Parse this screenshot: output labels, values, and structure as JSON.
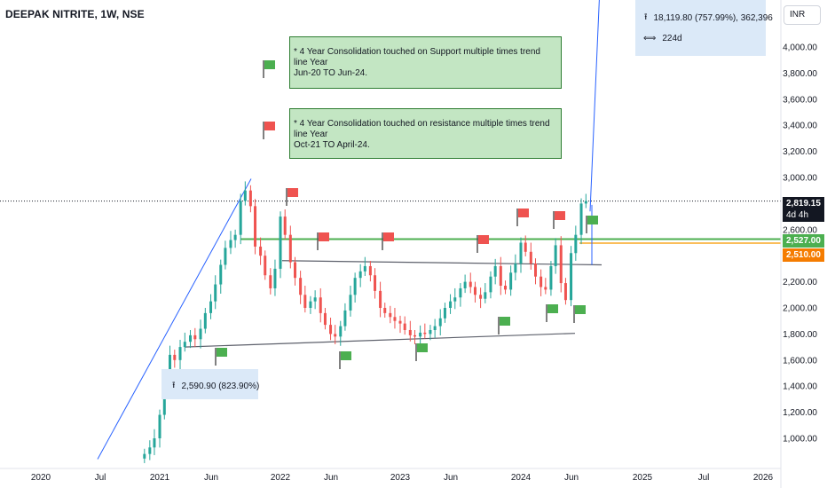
{
  "header": {
    "title": "DEEPAK NITRITE, 1W, NSE"
  },
  "currency_button": {
    "label": "INR"
  },
  "notes": [
    {
      "line1": "*  4 Year Consolidation touched on Support multiple times trend line Year",
      "line2": "Jun-20 TO Jun-24."
    },
    {
      "line1": "*  4 Year Consolidation touched on resistance multiple times trend line Year",
      "line2": "Oct-21 TO April-24."
    }
  ],
  "measure_top": {
    "price_line": "18,119.80 (757.99%), 362,396",
    "span": "224d",
    "price_icon": "price-range-icon",
    "span_icon": "date-range-icon"
  },
  "measure_left": {
    "price_line": "2,590.90 (823.90%)",
    "price_icon": "price-range-icon"
  },
  "price_tags": {
    "last": "2,819.15",
    "countdown": "4d 4h",
    "green": "2,527.00",
    "orange": "2,510.00"
  },
  "colors": {
    "up": "#26a69a",
    "down": "#ef5350",
    "trend_blue": "#2962ff",
    "support_green": "#4caf50",
    "level_orange": "#f9a825",
    "channel_grey": "#5d606b"
  },
  "chart_data": {
    "type": "candlestick",
    "title": "DEEPAK NITRITE, 1W, NSE",
    "x_ticks": [
      "2020",
      "Jul",
      "2021",
      "Jun",
      "2022",
      "Jun",
      "2023",
      "Jun",
      "2024",
      "Jun",
      "2025",
      "Jul",
      "2026"
    ],
    "y_ticks": [
      "4,000.00",
      "3,800.00",
      "3,600.00",
      "3,400.00",
      "3,200.00",
      "3,000.00",
      "2,600.00",
      "2,200.00",
      "2,000.00",
      "1,800.00",
      "1,600.00",
      "1,400.00",
      "1,200.00",
      "1,000.00"
    ],
    "ylim": [
      820,
      4220
    ],
    "closes": [
      [
        "2020-11-15",
        880
      ],
      [
        "2020-12-01",
        930
      ],
      [
        "2020-12-15",
        1000
      ],
      [
        "2021-01-01",
        1180
      ],
      [
        "2021-01-15",
        1380
      ],
      [
        "2021-02-01",
        1640
      ],
      [
        "2021-02-15",
        1600
      ],
      [
        "2021-03-01",
        1700
      ],
      [
        "2021-03-15",
        1740
      ],
      [
        "2021-04-01",
        1790
      ],
      [
        "2021-04-15",
        1760
      ],
      [
        "2021-05-01",
        1840
      ],
      [
        "2021-05-15",
        1960
      ],
      [
        "2021-06-01",
        2050
      ],
      [
        "2021-06-15",
        2180
      ],
      [
        "2021-07-01",
        2330
      ],
      [
        "2021-07-15",
        2460
      ],
      [
        "2021-08-01",
        2520
      ],
      [
        "2021-08-15",
        2560
      ],
      [
        "2021-09-01",
        2820
      ],
      [
        "2021-09-15",
        2900
      ],
      [
        "2021-10-01",
        2780
      ],
      [
        "2021-10-15",
        2470
      ],
      [
        "2021-11-01",
        2400
      ],
      [
        "2021-11-15",
        2250
      ],
      [
        "2021-12-01",
        2150
      ],
      [
        "2021-12-15",
        2300
      ],
      [
        "2022-01-01",
        2700
      ],
      [
        "2022-01-15",
        2560
      ],
      [
        "2022-02-01",
        2350
      ],
      [
        "2022-02-15",
        2230
      ],
      [
        "2022-03-01",
        2100
      ],
      [
        "2022-03-15",
        2000
      ],
      [
        "2022-04-01",
        2050
      ],
      [
        "2022-04-15",
        2080
      ],
      [
        "2022-05-01",
        1960
      ],
      [
        "2022-05-15",
        1870
      ],
      [
        "2022-06-01",
        1800
      ],
      [
        "2022-06-15",
        1780
      ],
      [
        "2022-07-01",
        1860
      ],
      [
        "2022-07-15",
        1980
      ],
      [
        "2022-08-01",
        2100
      ],
      [
        "2022-08-15",
        2230
      ],
      [
        "2022-09-01",
        2280
      ],
      [
        "2022-09-15",
        2320
      ],
      [
        "2022-10-01",
        2250
      ],
      [
        "2022-10-15",
        2130
      ],
      [
        "2022-11-01",
        2000
      ],
      [
        "2022-11-15",
        1960
      ],
      [
        "2022-12-01",
        1930
      ],
      [
        "2022-12-15",
        1900
      ],
      [
        "2023-01-01",
        1880
      ],
      [
        "2023-01-15",
        1830
      ],
      [
        "2023-02-01",
        1790
      ],
      [
        "2023-02-15",
        1780
      ],
      [
        "2023-03-01",
        1810
      ],
      [
        "2023-03-15",
        1800
      ],
      [
        "2023-04-01",
        1830
      ],
      [
        "2023-04-15",
        1860
      ],
      [
        "2023-05-01",
        1920
      ],
      [
        "2023-05-15",
        2000
      ],
      [
        "2023-06-01",
        2050
      ],
      [
        "2023-06-15",
        2080
      ],
      [
        "2023-07-01",
        2150
      ],
      [
        "2023-07-15",
        2200
      ],
      [
        "2023-08-01",
        2160
      ],
      [
        "2023-08-15",
        2100
      ],
      [
        "2023-09-01",
        2070
      ],
      [
        "2023-09-15",
        2120
      ],
      [
        "2023-10-01",
        2240
      ],
      [
        "2023-10-15",
        2320
      ],
      [
        "2023-11-01",
        2170
      ],
      [
        "2023-11-15",
        2140
      ],
      [
        "2023-12-01",
        2270
      ],
      [
        "2023-12-15",
        2340
      ],
      [
        "2024-01-01",
        2500
      ],
      [
        "2024-01-15",
        2430
      ],
      [
        "2024-02-01",
        2340
      ],
      [
        "2024-02-15",
        2240
      ],
      [
        "2024-03-01",
        2160
      ],
      [
        "2024-03-15",
        2140
      ],
      [
        "2024-04-01",
        2320
      ],
      [
        "2024-04-15",
        2480
      ],
      [
        "2024-05-01",
        2190
      ],
      [
        "2024-05-15",
        2060
      ],
      [
        "2024-06-01",
        2420
      ],
      [
        "2024-06-15",
        2560
      ],
      [
        "2024-07-01",
        2800
      ],
      [
        "2024-07-15",
        2819.15
      ]
    ],
    "horizontal_levels": [
      2527,
      2510
    ],
    "last_price": 2819.15
  }
}
